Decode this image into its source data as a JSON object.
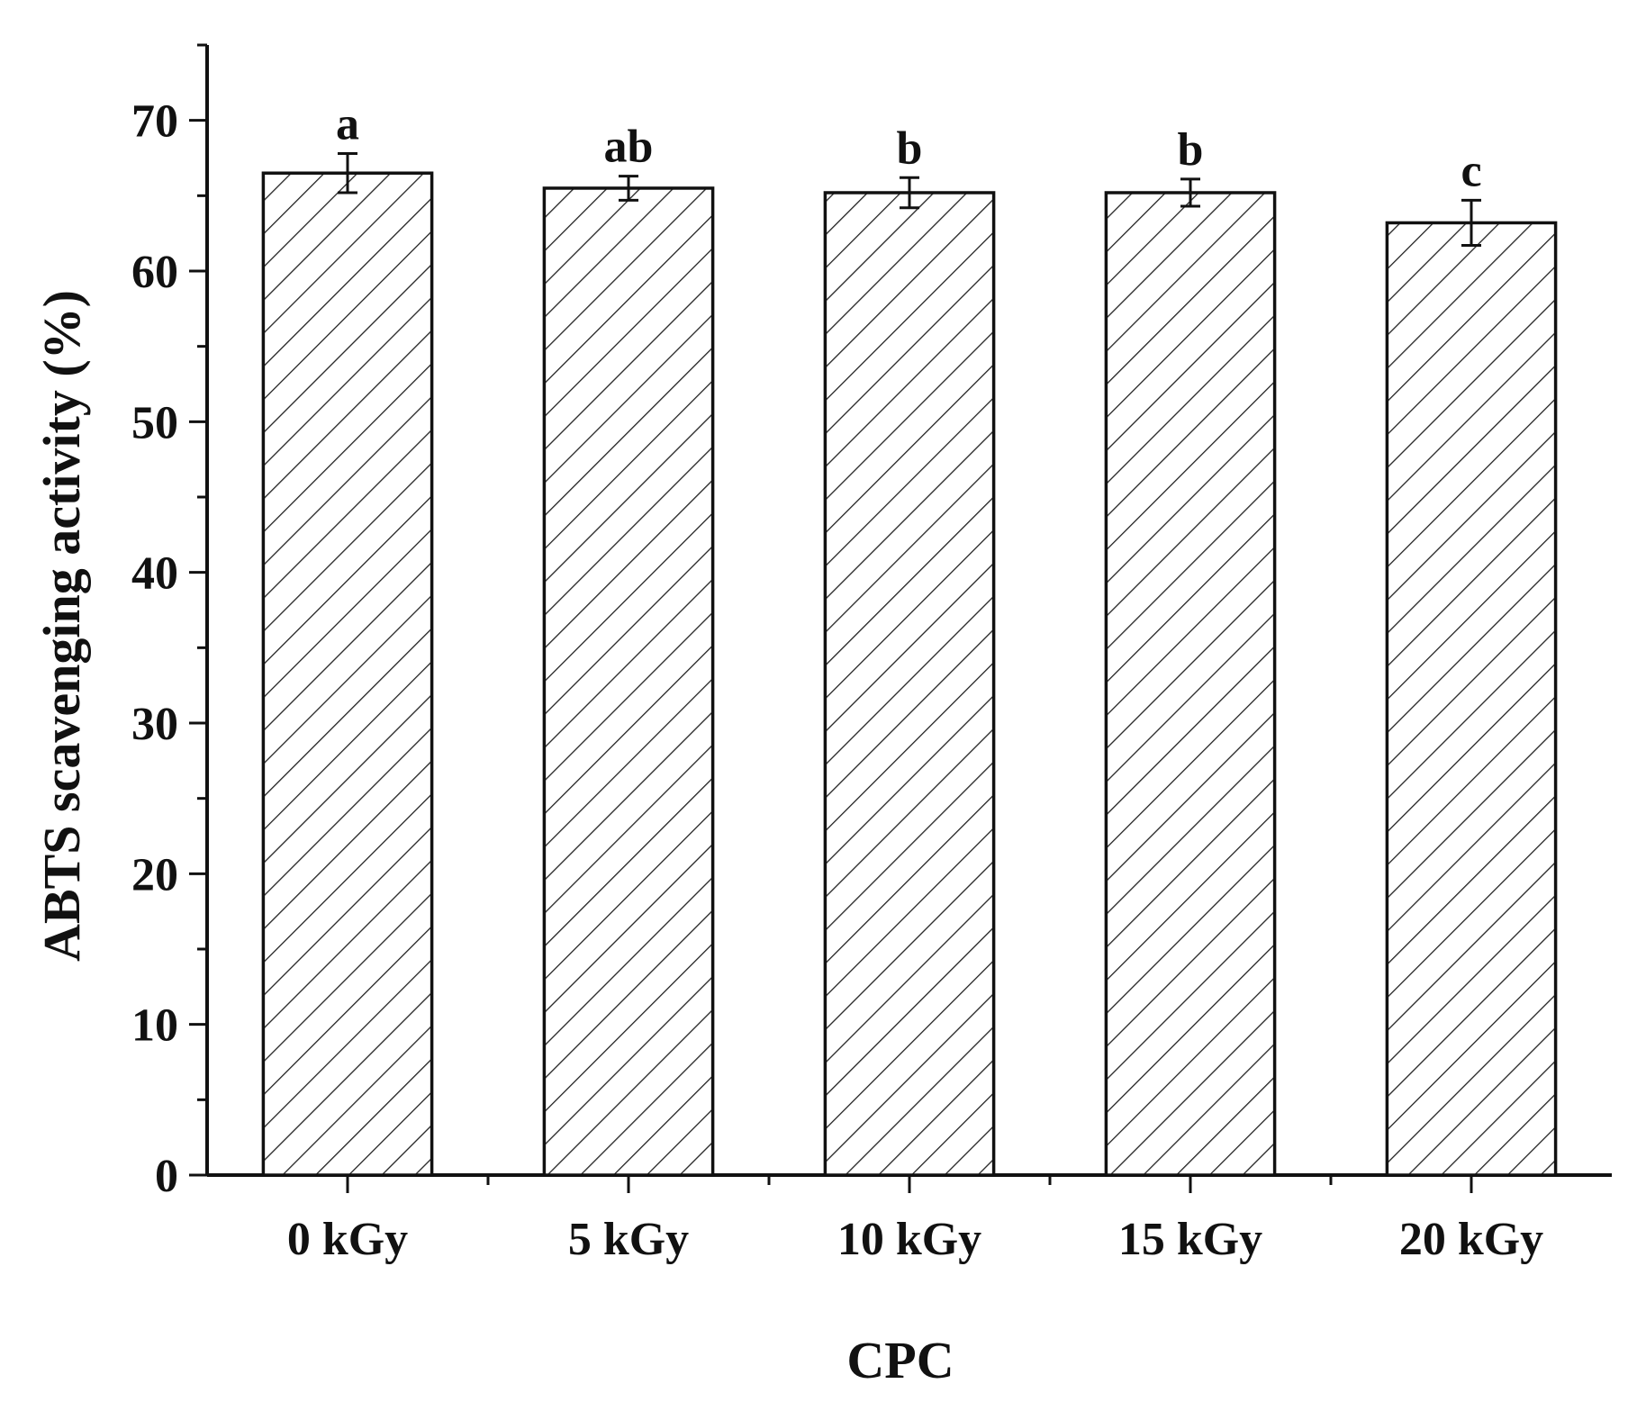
{
  "chart_data": {
    "type": "bar",
    "title": "",
    "xlabel": "CPC",
    "ylabel": "ABTS scavenging activity (%)",
    "ylim": [
      0,
      75
    ],
    "yticks": [
      0,
      10,
      20,
      30,
      40,
      50,
      60,
      70
    ],
    "categories": [
      "0 kGy",
      "5 kGy",
      "10 kGy",
      "15 kGy",
      "20 kGy"
    ],
    "values": [
      66.5,
      65.5,
      65.2,
      65.2,
      63.2
    ],
    "errors": [
      1.3,
      0.8,
      1.0,
      0.9,
      1.5
    ],
    "significance": [
      "a",
      "ab",
      "b",
      "b",
      "c"
    ],
    "bar_fill": "hatched",
    "colors": {
      "bar_stroke": "#111111",
      "hatch": "#222222",
      "axis": "#111111"
    },
    "grid": false
  }
}
